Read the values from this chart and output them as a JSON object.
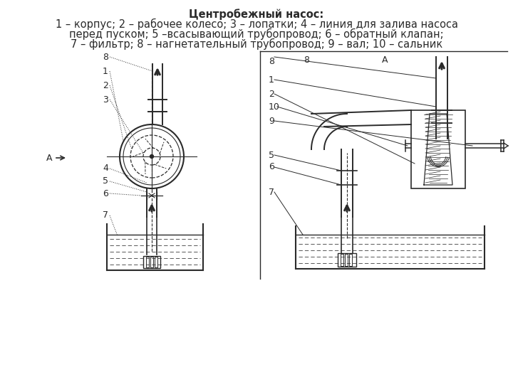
{
  "title_line1": "Центробежный насос:",
  "title_line2": "1 – корпус; 2 – рабочее колесо; 3 – лопатки; 4 – линия для залива насоса",
  "title_line3": "перед пуском; 5 –всасывающий трубопровод; 6 – обратный клапан;",
  "title_line4": "7 – фильтр; 8 – нагнетательный трубопровод; 9 – вал; 10 – сальник",
  "line_color": "#2a2a2a",
  "bg_color": "#ffffff",
  "title_fontsize": 10.5,
  "label_fontsize": 9
}
